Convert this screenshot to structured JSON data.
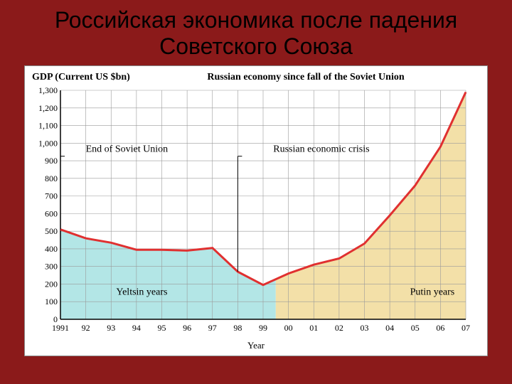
{
  "slide": {
    "title": "Российская экономика после падения Советского Союза",
    "background_color": "#8b1a1a"
  },
  "chart": {
    "type": "area-line",
    "gdp_label": "GDP (Current US $bn)",
    "chart_title": "Russian economy since fall of the Soviet Union",
    "xlabel": "Year",
    "x_ticklabels": [
      "1991",
      "92",
      "93",
      "94",
      "95",
      "96",
      "97",
      "98",
      "99",
      "00",
      "01",
      "02",
      "03",
      "04",
      "05",
      "06",
      "07"
    ],
    "y_min": 0,
    "y_max": 1300,
    "y_tick_step": 100,
    "series": {
      "years": [
        1991,
        1992,
        1993,
        1994,
        1995,
        1996,
        1997,
        1998,
        1999,
        2000,
        2001,
        2002,
        2003,
        2004,
        2005,
        2006,
        2007
      ],
      "values": [
        510,
        460,
        435,
        395,
        395,
        390,
        405,
        270,
        195,
        260,
        310,
        345,
        430,
        590,
        760,
        980,
        1290
      ]
    },
    "split_year": 1999.5,
    "line_color": "#e03030",
    "line_width": 3,
    "fill_left_color": "#b3e6e6",
    "fill_right_color": "#f3e0a8",
    "axis_color": "#000000",
    "grid_color": "#9a9a9a",
    "grid_width": 0.6,
    "background_color": "#ffffff",
    "tick_fontsize": 12,
    "annotations": [
      {
        "id": "end-soviet",
        "label": "End of Soviet Union",
        "x_year": 1991,
        "tick_y": 510,
        "text_x_year": 1992.0,
        "text_y_val": 950
      },
      {
        "id": "crisis",
        "label": "Russian economic crisis",
        "x_year": 1998,
        "tick_y": 270,
        "text_x_year": 1999.4,
        "text_y_val": 950
      },
      {
        "id": "yeltsin",
        "label": "Yeltsin years",
        "x_year": 1993.2,
        "tick_y": null,
        "text_x_year": 1993.2,
        "text_y_val": 140
      },
      {
        "id": "putin",
        "label": "Putin years",
        "x_year": 2004.8,
        "tick_y": null,
        "text_x_year": 2004.8,
        "text_y_val": 140
      }
    ]
  }
}
